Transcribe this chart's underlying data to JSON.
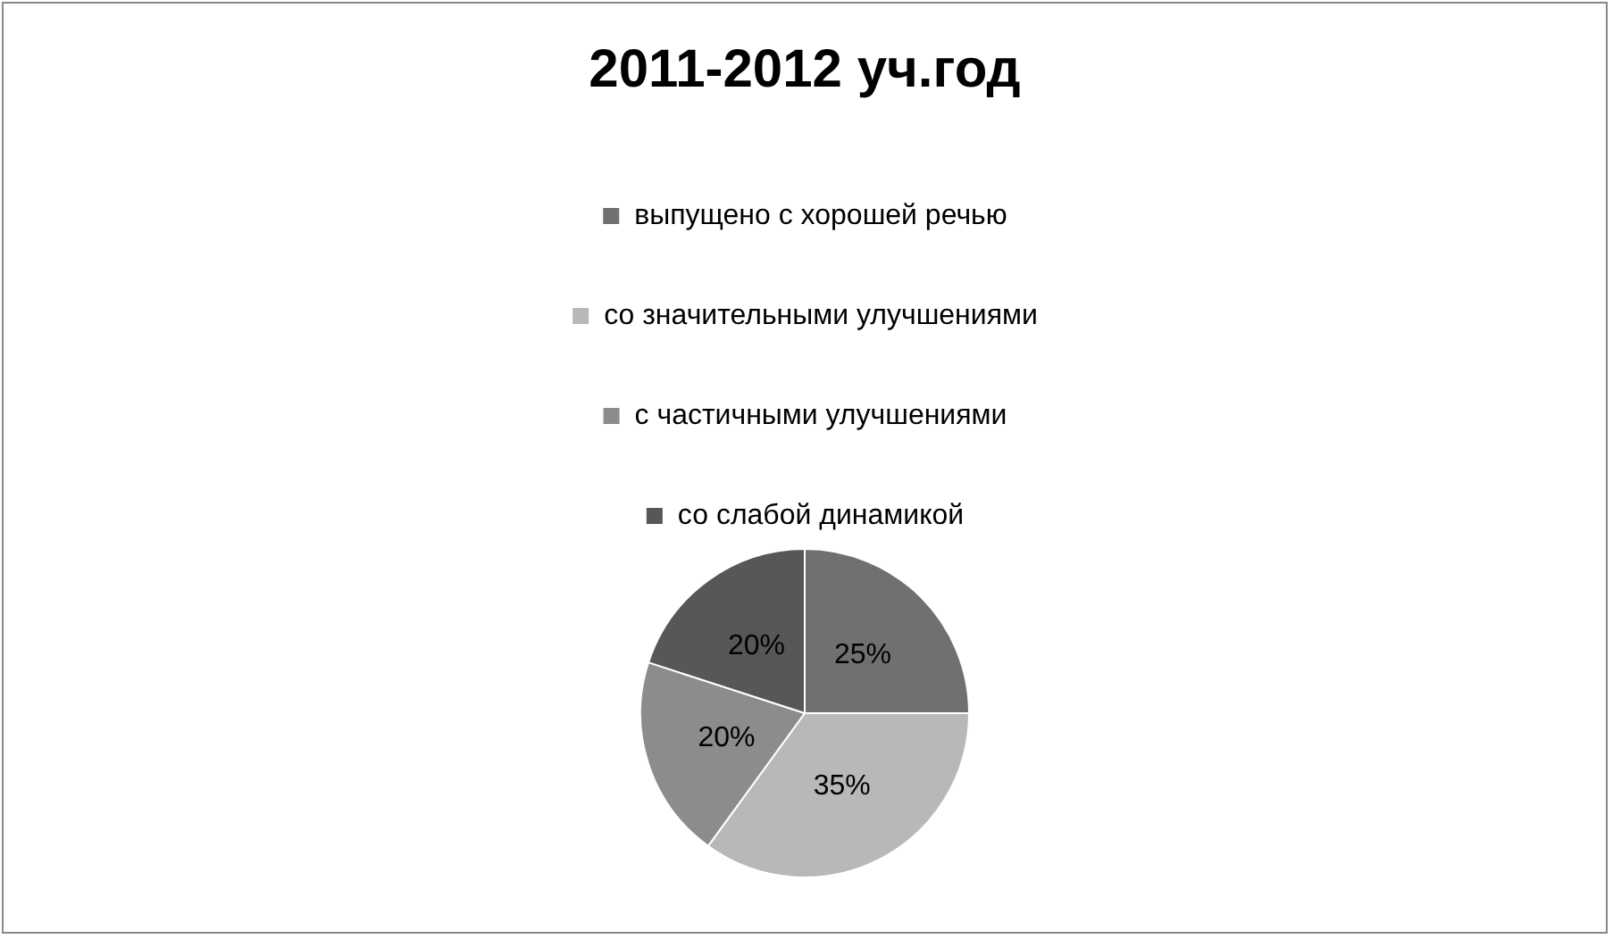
{
  "chart_data": {
    "type": "pie",
    "title": "2011-2012 уч.год",
    "categories": [
      "выпущено с хорошей речью",
      "со значительными улучшениями",
      "с частичными улучшениями",
      "со слабой динамикой"
    ],
    "values": [
      25,
      35,
      20,
      20
    ],
    "colors": [
      "#707070",
      "#b8b8b8",
      "#8c8c8c",
      "#575757"
    ],
    "value_labels": [
      "25%",
      "35%",
      "20%",
      "20%"
    ],
    "legend": "top"
  }
}
